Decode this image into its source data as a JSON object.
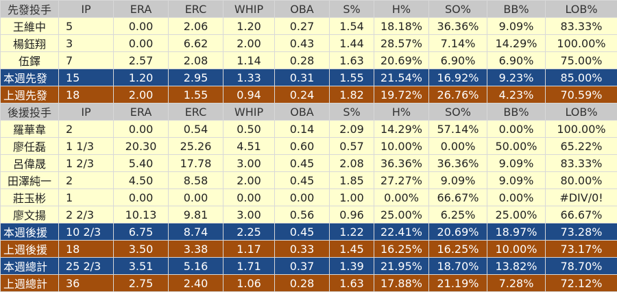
{
  "columns": [
    "IP",
    "ERA",
    "ERC",
    "WHIP",
    "OBA",
    "S%",
    "H%",
    "SO%",
    "BB%",
    "LOB%"
  ],
  "colors": {
    "header": "#c9c9c9",
    "row": "#ffffcf",
    "this_week": "#1f4b87",
    "last_week": "#a24e0c"
  },
  "sections": [
    {
      "title": "先發投手",
      "rows": [
        {
          "type": "row",
          "name": "王維中",
          "v": [
            "5",
            "0.00",
            "2.06",
            "1.20",
            "0.27",
            "1.54",
            "18.18%",
            "36.36%",
            "9.09%",
            "83.33%"
          ]
        },
        {
          "type": "row",
          "name": "楊鈺翔",
          "v": [
            "3",
            "0.00",
            "6.62",
            "2.00",
            "0.43",
            "1.44",
            "28.57%",
            "7.14%",
            "14.29%",
            "100.00%"
          ]
        },
        {
          "type": "row",
          "name": "伍鐸",
          "v": [
            "7",
            "2.57",
            "2.08",
            "1.14",
            "0.28",
            "1.63",
            "20.69%",
            "6.90%",
            "6.90%",
            "75.00%"
          ]
        },
        {
          "type": "blue",
          "name": "本週先發",
          "v": [
            "15",
            "1.20",
            "2.95",
            "1.33",
            "0.31",
            "1.55",
            "21.54%",
            "16.92%",
            "9.23%",
            "85.00%"
          ]
        },
        {
          "type": "orange",
          "name": "上週先發",
          "v": [
            "18",
            "2.00",
            "1.55",
            "0.94",
            "0.24",
            "1.82",
            "19.72%",
            "26.76%",
            "4.23%",
            "70.59%"
          ]
        }
      ]
    },
    {
      "title": "後援投手",
      "rows": [
        {
          "type": "row",
          "name": "羅華韋",
          "v": [
            "2",
            "0.00",
            "0.54",
            "0.50",
            "0.14",
            "2.09",
            "14.29%",
            "57.14%",
            "0.00%",
            "100.00%"
          ]
        },
        {
          "type": "row",
          "name": "廖任磊",
          "v": [
            "1 1/3",
            "20.30",
            "25.26",
            "4.51",
            "0.60",
            "0.57",
            "10.00%",
            "0.00%",
            "50.00%",
            "65.22%"
          ]
        },
        {
          "type": "row",
          "name": "呂偉晟",
          "v": [
            "1 2/3",
            "5.40",
            "17.78",
            "3.00",
            "0.45",
            "2.08",
            "36.36%",
            "36.36%",
            "9.09%",
            "83.33%"
          ]
        },
        {
          "type": "row",
          "name": "田澤純一",
          "v": [
            "2",
            "4.50",
            "8.58",
            "2.00",
            "0.45",
            "1.85",
            "27.27%",
            "9.09%",
            "9.09%",
            "80.00%"
          ]
        },
        {
          "type": "row",
          "name": "莊玉彬",
          "v": [
            "1",
            "0.00",
            "0.00",
            "0.00",
            "0.00",
            "1.00",
            "0.00%",
            "66.67%",
            "0.00%",
            "#DIV/0!"
          ]
        },
        {
          "type": "row",
          "name": "廖文揚",
          "v": [
            "2 2/3",
            "10.13",
            "9.81",
            "3.00",
            "0.56",
            "0.96",
            "25.00%",
            "6.25%",
            "25.00%",
            "66.67%"
          ]
        },
        {
          "type": "blue",
          "name": "本週後援",
          "v": [
            "10 2/3",
            "6.75",
            "8.74",
            "2.25",
            "0.45",
            "1.22",
            "22.41%",
            "20.69%",
            "18.97%",
            "73.28%"
          ]
        },
        {
          "type": "orange",
          "name": "上週後援",
          "v": [
            "18",
            "3.50",
            "3.38",
            "1.17",
            "0.33",
            "1.45",
            "16.25%",
            "16.25%",
            "10.00%",
            "73.17%"
          ]
        },
        {
          "type": "blue",
          "name": "本週總計",
          "v": [
            "25 2/3",
            "3.51",
            "5.16",
            "1.71",
            "0.37",
            "1.39",
            "21.95%",
            "18.70%",
            "13.82%",
            "78.70%"
          ]
        },
        {
          "type": "orange",
          "name": "上週總計",
          "v": [
            "36",
            "2.75",
            "2.40",
            "1.06",
            "0.28",
            "1.63",
            "17.88%",
            "21.19%",
            "7.28%",
            "72.12%"
          ]
        }
      ]
    }
  ]
}
